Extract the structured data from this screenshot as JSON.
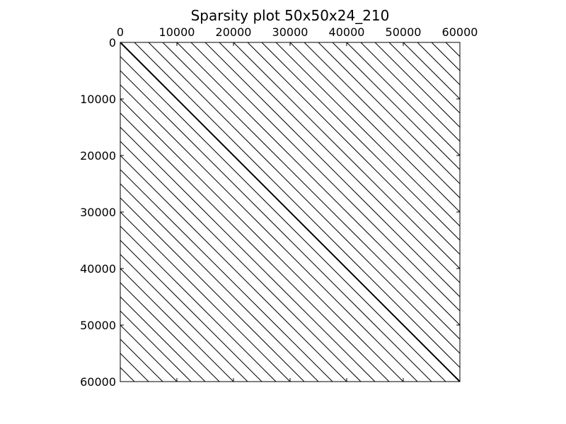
{
  "chart_data": {
    "type": "sparsity",
    "title": "Sparsity plot 50x50x24_210",
    "xlabel": "",
    "ylabel": "",
    "xlim": [
      0,
      60000
    ],
    "ylim": [
      0,
      60000
    ],
    "x_ticks": [
      "0",
      "10000",
      "20000",
      "30000",
      "40000",
      "50000",
      "60000"
    ],
    "y_ticks": [
      "0",
      "10000",
      "20000",
      "30000",
      "40000",
      "50000",
      "60000"
    ],
    "x_tick_values": [
      0,
      10000,
      20000,
      30000,
      40000,
      50000,
      60000
    ],
    "y_tick_values": [
      0,
      10000,
      20000,
      30000,
      40000,
      50000,
      60000
    ],
    "x_axis_position": "top",
    "grid": false,
    "marker_color": "#000000",
    "diagonal_offsets": [
      -57500,
      -55000,
      -52500,
      -50000,
      -47500,
      -45000,
      -42500,
      -40000,
      -37500,
      -35000,
      -32500,
      -30000,
      -27500,
      -25000,
      -22500,
      -20000,
      -17500,
      -15000,
      -12500,
      -10000,
      -7500,
      -5000,
      -2500,
      0,
      2500,
      5000,
      7500,
      10000,
      12500,
      15000,
      17500,
      20000,
      22500,
      25000,
      27500,
      30000,
      32500,
      35000,
      37500,
      40000,
      42500,
      45000,
      47500,
      50000,
      52500,
      55000,
      57500
    ]
  }
}
